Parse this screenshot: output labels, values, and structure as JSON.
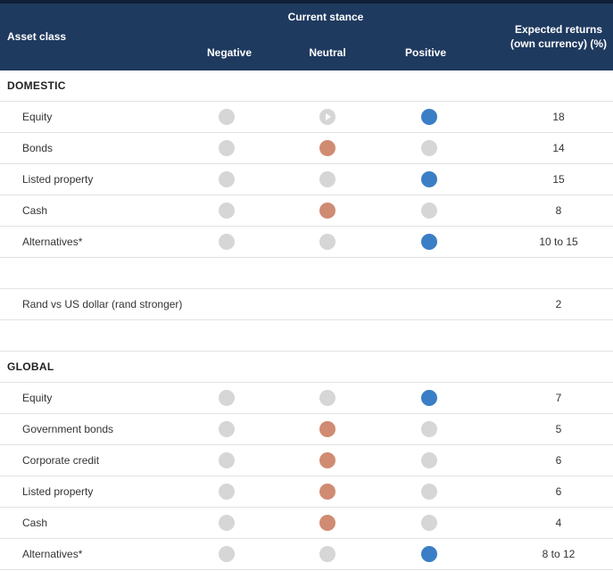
{
  "header": {
    "asset_class": "Asset class",
    "current_stance": "Current stance",
    "negative": "Negative",
    "neutral": "Neutral",
    "positive": "Positive",
    "expected_line1": "Expected returns",
    "expected_line2": "(own currency) (%)"
  },
  "colors": {
    "header_bg": "#1f3a5f",
    "positive": "#3a7ec6",
    "neutral": "#d08b73",
    "inactive": "#d6d6d6"
  },
  "domestic": {
    "title": "DOMESTIC",
    "rows": [
      {
        "label": "Equity",
        "stance": "positive",
        "return": "18"
      },
      {
        "label": "Bonds",
        "stance": "neutral",
        "return": "14"
      },
      {
        "label": "Listed property",
        "stance": "positive",
        "return": "15"
      },
      {
        "label": "Cash",
        "stance": "neutral",
        "return": "8"
      },
      {
        "label": "Alternatives*",
        "stance": "positive",
        "return": "10 to 15"
      }
    ]
  },
  "rand": {
    "label": "Rand vs US dollar (rand stronger)",
    "return": "2"
  },
  "global": {
    "title": "GLOBAL",
    "rows": [
      {
        "label": "Equity",
        "stance": "positive",
        "return": "7"
      },
      {
        "label": "Government bonds",
        "stance": "neutral",
        "return": "5"
      },
      {
        "label": "Corporate credit",
        "stance": "neutral",
        "return": "6"
      },
      {
        "label": "Listed property",
        "stance": "neutral",
        "return": "6"
      },
      {
        "label": "Cash",
        "stance": "neutral",
        "return": "4"
      },
      {
        "label": "Alternatives*",
        "stance": "positive",
        "return": "8 to 12"
      }
    ]
  }
}
